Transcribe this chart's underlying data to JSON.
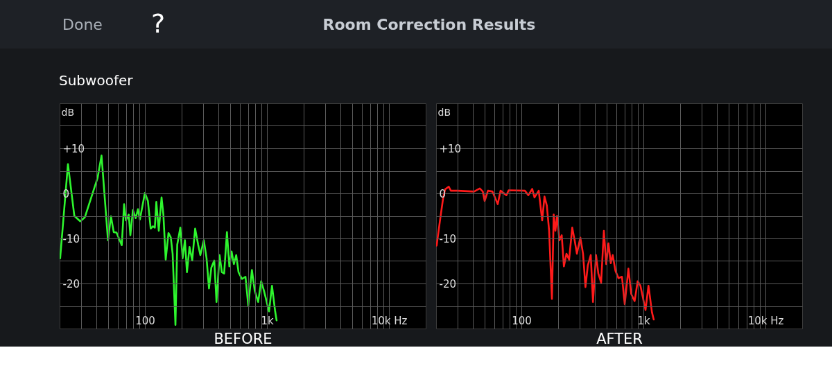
{
  "chart_data": [
    {
      "type": "line",
      "title": "Room Correction Results",
      "subtitle": "Subwoofer",
      "annotations": [
        "Done",
        "?"
      ],
      "xlabel": "BEFORE",
      "ylabel": "dB",
      "log": "x",
      "grid": true,
      "line_style": "solid",
      "color": "#2ef52e",
      "xlim": [
        20,
        20000
      ],
      "ylim": [
        -30,
        20
      ],
      "xticks": [
        {
          "value": 30,
          "label": null
        },
        {
          "value": 40,
          "label": null
        },
        {
          "value": 50,
          "label": null
        },
        {
          "value": 60,
          "label": null
        },
        {
          "value": 70,
          "label": null
        },
        {
          "value": 80,
          "label": null
        },
        {
          "value": 90,
          "label": null
        },
        100,
        {
          "value": 200,
          "label": null
        },
        {
          "value": 300,
          "label": null
        },
        {
          "value": 400,
          "label": null
        },
        {
          "value": 500,
          "label": null
        },
        {
          "value": 600,
          "label": null
        },
        {
          "value": 700,
          "label": null
        },
        {
          "value": 800,
          "label": null
        },
        {
          "value": 900,
          "label": null
        },
        {
          "value": 1000,
          "label": "1k"
        },
        {
          "value": 2000,
          "label": null
        },
        {
          "value": 3000,
          "label": null
        },
        {
          "value": 4000,
          "label": null
        },
        {
          "value": 5000,
          "label": null
        },
        {
          "value": 6000,
          "label": null
        },
        {
          "value": 7000,
          "label": null
        },
        {
          "value": 8000,
          "label": null
        },
        {
          "value": 9000,
          "label": null
        },
        {
          "value": 10000,
          "label": "10k Hz"
        }
      ],
      "yticks": [
        {
          "value": 15,
          "label": null
        },
        {
          "value": 10,
          "label": "+10"
        },
        {
          "value": 5,
          "label": null
        },
        0,
        {
          "value": -5,
          "label": null
        },
        -10,
        {
          "value": -15,
          "label": null
        },
        -20,
        {
          "value": -25,
          "label": null
        }
      ],
      "x": [
        20.2,
        23.4,
        26.4,
        29.5,
        32.2,
        40.9,
        44.1,
        49.8,
        52.7,
        55.5,
        58.5,
        64.6,
        67.5,
        69.9,
        73.7,
        76,
        79.7,
        84,
        87.7,
        90.9,
        100,
        105.8,
        111.5,
        116.5,
        120.6,
        124,
        129.9,
        136.9,
        141.7,
        148,
        156,
        163,
        168.7,
        177.9,
        184,
        195,
        203.6,
        212.7,
        221,
        232,
        244,
        258,
        273,
        284.6,
        304,
        320,
        335,
        350,
        370,
        386,
        409,
        427,
        446,
        470,
        492,
        513,
        536,
        560,
        585,
        624,
        667,
        703,
        753,
        794,
        847,
        897,
        945,
        1040,
        1100,
        1165,
        1200
      ],
      "values": [
        -14.4,
        6.5,
        -5.0,
        -6.2,
        -5.3,
        3.4,
        8.4,
        -10.4,
        -5.1,
        -8.6,
        -8.7,
        -11.5,
        -2.4,
        -6.0,
        -4.7,
        -9.3,
        -3.7,
        -5.5,
        -3.5,
        -5.8,
        0.1,
        -1.7,
        -7.8,
        -7.3,
        -7.6,
        -1.9,
        -8.3,
        -0.9,
        -4.7,
        -14.7,
        -8.8,
        -9.8,
        -13.4,
        -29.2,
        -11.4,
        -7.6,
        -14.4,
        -10.4,
        -17.5,
        -11.9,
        -14.9,
        -7.8,
        -11.4,
        -13.7,
        -10.4,
        -14.4,
        -21.1,
        -16.5,
        -14.9,
        -24.1,
        -13.7,
        -17.5,
        -17.8,
        -8.6,
        -16.2,
        -12.9,
        -15.7,
        -13.7,
        -17.5,
        -19.0,
        -18.5,
        -24.9,
        -17.0,
        -21.6,
        -24.1,
        -19.5,
        -21.6,
        -26.2,
        -20.5,
        -26.0,
        -28.2
      ]
    },
    {
      "type": "line",
      "xlabel": "AFTER",
      "ylabel": "dB",
      "log": "x",
      "grid": true,
      "line_style": "solid",
      "color": "#ff1a1a",
      "xlim": [
        20,
        20000
      ],
      "ylim": [
        -30,
        20
      ],
      "xticks": [
        {
          "value": 30,
          "label": null
        },
        {
          "value": 40,
          "label": null
        },
        {
          "value": 50,
          "label": null
        },
        {
          "value": 60,
          "label": null
        },
        {
          "value": 70,
          "label": null
        },
        {
          "value": 80,
          "label": null
        },
        {
          "value": 90,
          "label": null
        },
        100,
        {
          "value": 200,
          "label": null
        },
        {
          "value": 300,
          "label": null
        },
        {
          "value": 400,
          "label": null
        },
        {
          "value": 500,
          "label": null
        },
        {
          "value": 600,
          "label": null
        },
        {
          "value": 700,
          "label": null
        },
        {
          "value": 800,
          "label": null
        },
        {
          "value": 900,
          "label": null
        },
        {
          "value": 1000,
          "label": "1k"
        },
        {
          "value": 2000,
          "label": null
        },
        {
          "value": 3000,
          "label": null
        },
        {
          "value": 4000,
          "label": null
        },
        {
          "value": 5000,
          "label": null
        },
        {
          "value": 6000,
          "label": null
        },
        {
          "value": 7000,
          "label": null
        },
        {
          "value": 8000,
          "label": null
        },
        {
          "value": 9000,
          "label": null
        },
        {
          "value": 10000,
          "label": "10k Hz"
        }
      ],
      "yticks": [
        {
          "value": 15,
          "label": null
        },
        {
          "value": 10,
          "label": "+10"
        },
        {
          "value": 5,
          "label": null
        },
        0,
        {
          "value": -5,
          "label": null
        },
        -10,
        {
          "value": -15,
          "label": null
        },
        -20,
        {
          "value": -25,
          "label": null
        }
      ],
      "x": [
        20.2,
        21.7,
        22.8,
        23.7,
        25.4,
        26.4,
        30.1,
        40.9,
        45.6,
        48.3,
        50,
        53.2,
        58,
        64,
        67.5,
        75.3,
        78.7,
        106.8,
        114,
        122.7,
        128,
        138.7,
        148,
        154.6,
        161.6,
        168.7,
        177.9,
        184,
        190,
        196,
        205,
        214,
        223,
        234,
        246,
        261,
        273,
        285,
        304,
        320,
        335,
        350,
        370,
        386,
        409,
        427,
        450,
        474,
        496,
        517,
        540,
        560,
        590,
        624,
        667,
        703,
        753,
        794,
        847,
        897,
        945,
        1040,
        1100,
        1175,
        1215
      ],
      "values": [
        -11.6,
        -5.3,
        -1.2,
        0.9,
        1.5,
        0.6,
        0.6,
        0.4,
        1.1,
        0.4,
        -1.7,
        0.6,
        0.4,
        -2.4,
        0.6,
        -0.4,
        0.7,
        0.6,
        -0.4,
        1.0,
        -0.9,
        0.6,
        -6.0,
        -0.7,
        -2.7,
        -8.3,
        -23.4,
        -4.7,
        -8.3,
        -5.0,
        -10.4,
        -9.3,
        -16.2,
        -13.4,
        -14.7,
        -7.6,
        -10.4,
        -13.4,
        -9.8,
        -13.4,
        -20.8,
        -16.0,
        -13.7,
        -24.1,
        -13.7,
        -17.8,
        -19.8,
        -8.3,
        -15.7,
        -11.1,
        -15.5,
        -13.7,
        -17.2,
        -18.8,
        -18.5,
        -24.6,
        -16.7,
        -22.3,
        -23.9,
        -19.5,
        -20.5,
        -25.9,
        -20.5,
        -26.4,
        -28.0
      ]
    }
  ]
}
